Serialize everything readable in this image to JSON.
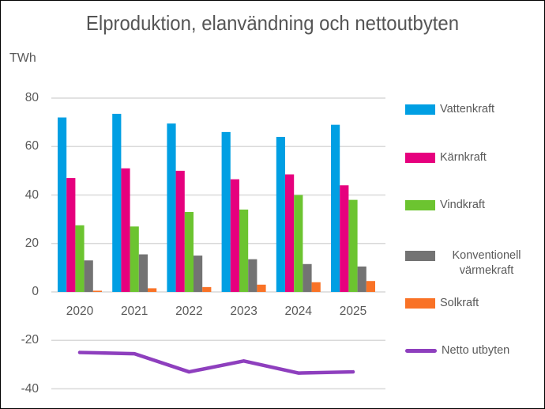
{
  "title": "Elproduktion, elanvändning och nettoutbyten",
  "axis_unit": "TWh",
  "chart_data": {
    "type": "combo-bar-line",
    "categories": [
      "2020",
      "2021",
      "2022",
      "2023",
      "2024",
      "2025"
    ],
    "series": [
      {
        "name": "Vattenkraft",
        "type": "bar",
        "color": "#009FE3",
        "values": [
          72,
          73.5,
          69.5,
          66,
          64,
          69
        ]
      },
      {
        "name": "Kärnkraft",
        "type": "bar",
        "color": "#E6007E",
        "values": [
          47,
          51,
          50,
          46.5,
          48.5,
          44
        ]
      },
      {
        "name": "Vindkraft",
        "type": "bar",
        "color": "#6CC430",
        "values": [
          27.5,
          27,
          33,
          34,
          40,
          38
        ]
      },
      {
        "name": "Konventionell värmekraft",
        "type": "bar",
        "color": "#737373",
        "values": [
          13,
          15.5,
          15,
          13.5,
          11.5,
          10.5
        ]
      },
      {
        "name": "Solkraft",
        "type": "bar",
        "color": "#F97226",
        "values": [
          0.5,
          1.5,
          2,
          3,
          4,
          4.5
        ]
      },
      {
        "name": "Netto utbyten",
        "type": "line",
        "color": "#8E3FBE",
        "values": [
          -25,
          -25.5,
          -33,
          -28.5,
          -33.5,
          -33
        ]
      }
    ],
    "ylim": [
      -40,
      80
    ],
    "yticks": [
      80,
      60,
      40,
      20,
      0,
      -20,
      -40
    ],
    "xlabel": "",
    "ylabel": "TWh",
    "grid": true,
    "legend_position": "right",
    "gridline_color": "#D9D9D9",
    "text_color": "#595959"
  }
}
